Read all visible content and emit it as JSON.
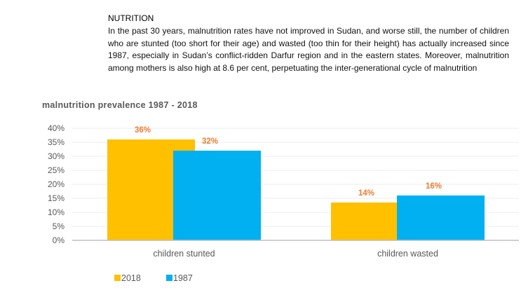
{
  "article": {
    "heading": "NUTRITION",
    "paragraph": "In the past 30 years, malnutrition rates have not improved in Sudan, and worse still, the number of children who are stunted (too short for their age) and wasted (too thin for their height) has actually increased since 1987, especially in Sudan’s conflict-ridden Darfur region and in the eastern states. Moreover, malnutrition among mothers is also high at 8.6 per cent, perpetuating the inter-generational cycle of malnutrition"
  },
  "chart_data": {
    "type": "bar",
    "title": "malnutrition prevalence 1987 - 2018",
    "categories": [
      "children stunted",
      "children wasted"
    ],
    "series": [
      {
        "name": "2018",
        "values": [
          36,
          13.5
        ],
        "labels": [
          "36%",
          "14%"
        ],
        "color": "#FFC000"
      },
      {
        "name": "1987",
        "values": [
          32,
          16
        ],
        "labels": [
          "32%",
          "16%"
        ],
        "color": "#00B0F0"
      }
    ],
    "yticks": [
      "0%",
      "5%",
      "10%",
      "15%",
      "20%",
      "25%",
      "30%",
      "35%",
      "40%"
    ],
    "ylim": [
      0,
      40
    ],
    "grid": true,
    "legend": "bottom-left",
    "label_color": "#ED7D31"
  }
}
